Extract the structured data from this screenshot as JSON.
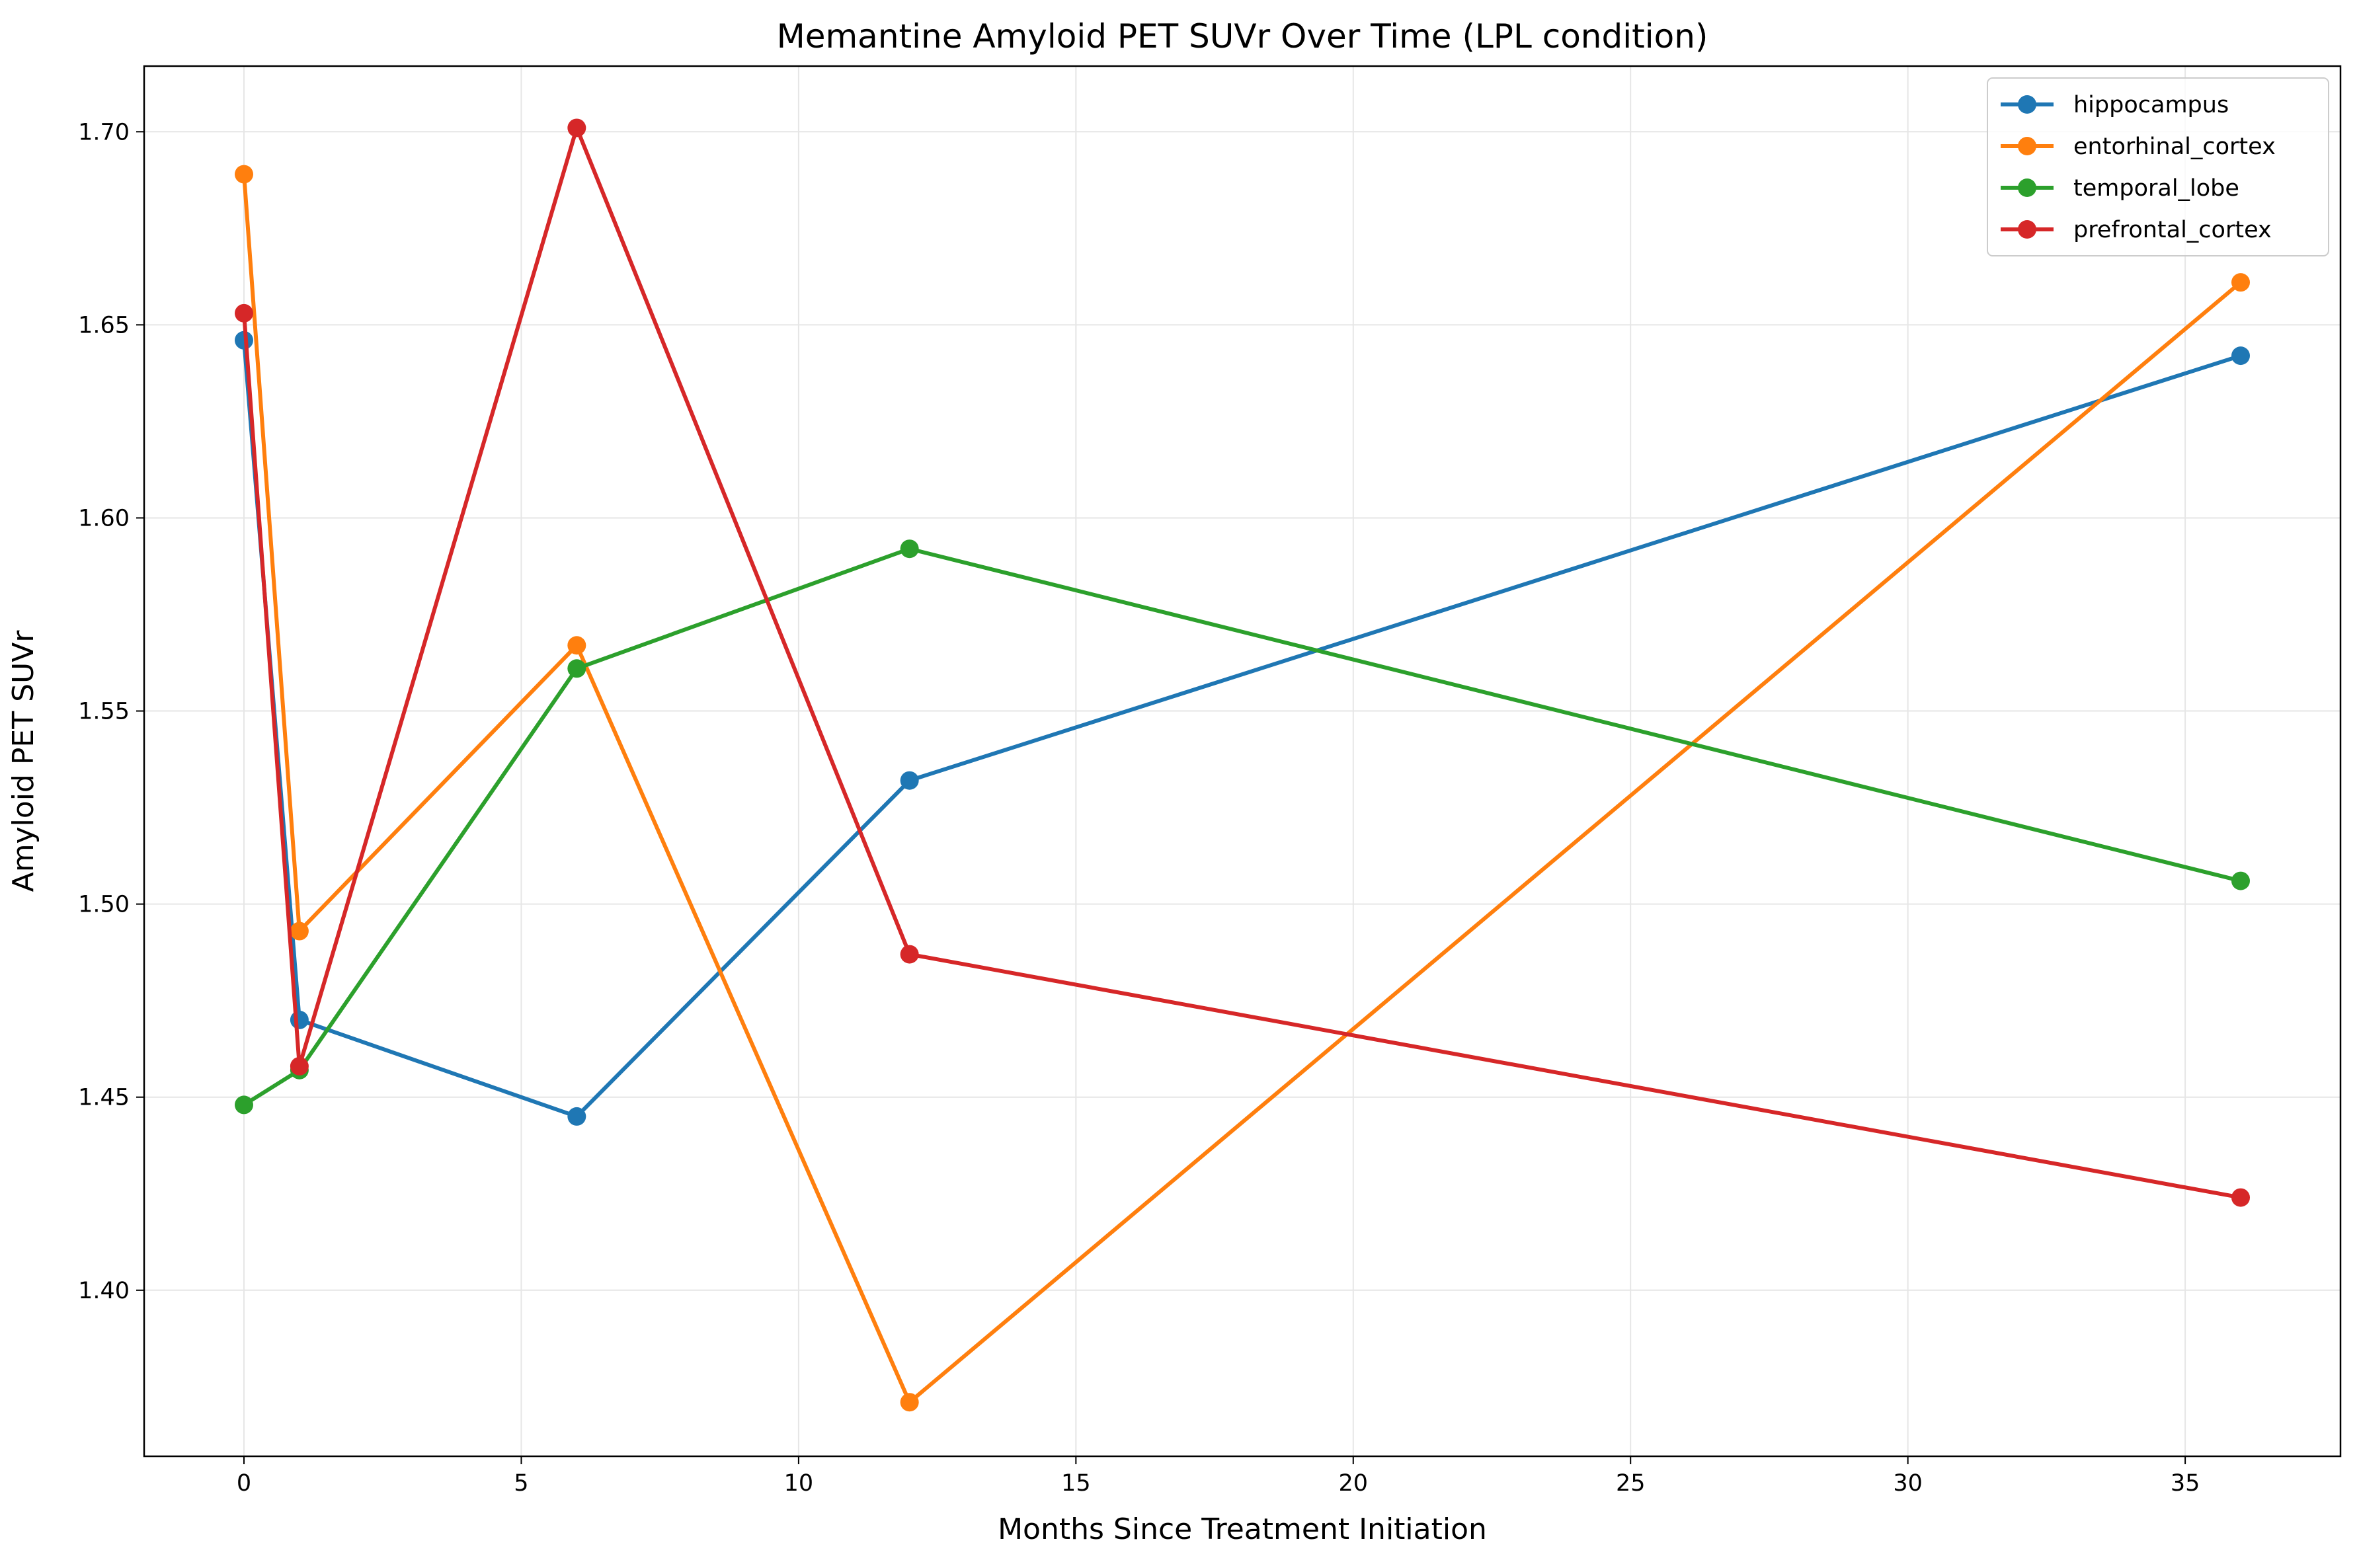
{
  "chart_data": {
    "type": "line",
    "title": "Memantine Amyloid PET SUVr Over Time (LPL condition)",
    "xlabel": "Months Since Treatment Initiation",
    "ylabel": "Amyloid PET SUVr",
    "xlim": [
      -1.8,
      37.8
    ],
    "ylim": [
      1.357,
      1.717
    ],
    "xticks": [
      0,
      5,
      10,
      15,
      20,
      25,
      30,
      35
    ],
    "yticks": [
      1.4,
      1.45,
      1.5,
      1.55,
      1.6,
      1.65,
      1.7
    ],
    "ytick_labels": [
      "1.40",
      "1.45",
      "1.50",
      "1.55",
      "1.60",
      "1.65",
      "1.70"
    ],
    "grid": true,
    "legend_position": "top-right",
    "x": [
      0,
      1,
      6,
      12,
      36
    ],
    "series": [
      {
        "name": "hippocampus",
        "color": "#1f77b4",
        "values": [
          1.646,
          1.47,
          1.445,
          1.532,
          1.642
        ]
      },
      {
        "name": "entorhinal_cortex",
        "color": "#ff7f0e",
        "values": [
          1.689,
          1.493,
          1.567,
          1.371,
          1.661
        ]
      },
      {
        "name": "temporal_lobe",
        "color": "#2ca02c",
        "values": [
          1.448,
          1.457,
          1.561,
          1.592,
          1.506
        ]
      },
      {
        "name": "prefrontal_cortex",
        "color": "#d62728",
        "values": [
          1.653,
          1.458,
          1.701,
          1.487,
          1.424
        ]
      }
    ]
  }
}
